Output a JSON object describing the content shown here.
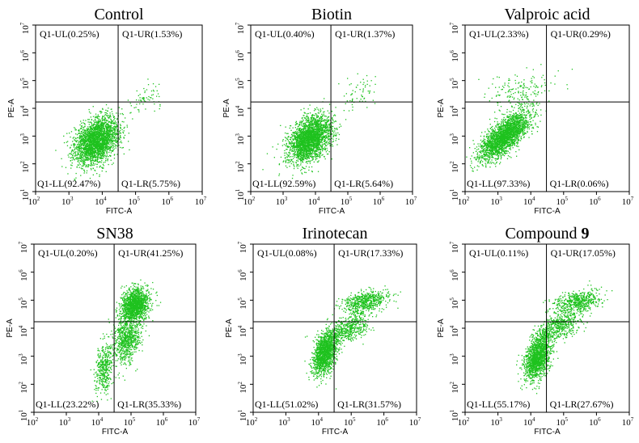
{
  "chart_data": [
    {
      "type": "scatter",
      "title": "Control",
      "xlabel": "FITC-A",
      "ylabel": "PE-A",
      "xscale": "log",
      "yscale": "log",
      "xlim": [
        100,
        10000000
      ],
      "ylim": [
        10,
        10000000
      ],
      "xticks": [
        "10",
        "10",
        "10",
        "10",
        "10",
        "10"
      ],
      "xtick_exp": [
        "2",
        "3",
        "4",
        "5",
        "6",
        "7"
      ],
      "yticks": [
        "10",
        "10",
        "10",
        "10",
        "10",
        "10",
        "10"
      ],
      "ytick_exp": [
        "1",
        "2",
        "3",
        "4",
        "5",
        "6",
        "7"
      ],
      "gates": {
        "x": 30000,
        "y": 17000
      },
      "color": "#1fc21f",
      "quadrants": {
        "UL": "Q1-UL(0.25%)",
        "UR": "Q1-UR(1.53%)",
        "LL": "Q1-LL(92.47%)",
        "LR": "Q1-LR(5.75%)"
      },
      "populations": [
        {
          "cx": 6500,
          "cy": 700,
          "sx": 0.33,
          "sy": 0.42,
          "rho": 0.35,
          "fraction": 0.975
        },
        {
          "cx": 200000,
          "cy": 30000,
          "sx": 0.28,
          "sy": 0.35,
          "rho": 0.3,
          "fraction": 0.025
        }
      ]
    },
    {
      "type": "scatter",
      "title": "Biotin",
      "xlabel": "FITC-A",
      "ylabel": "PE-A",
      "xscale": "log",
      "yscale": "log",
      "xlim": [
        100,
        10000000
      ],
      "ylim": [
        10,
        10000000
      ],
      "xticks": [
        "10",
        "10",
        "10",
        "10",
        "10",
        "10"
      ],
      "xtick_exp": [
        "2",
        "3",
        "4",
        "5",
        "6",
        "7"
      ],
      "yticks": [
        "10",
        "10",
        "10",
        "10",
        "10",
        "10",
        "10"
      ],
      "ytick_exp": [
        "1",
        "2",
        "3",
        "4",
        "5",
        "6",
        "7"
      ],
      "gates": {
        "x": 30000,
        "y": 17000
      },
      "color": "#1fc21f",
      "quadrants": {
        "UL": "Q1-UL(0.40%)",
        "UR": "Q1-UR(1.37%)",
        "LL": "Q1-LL(92.59%)",
        "LR": "Q1-LR(5.64%)"
      },
      "populations": [
        {
          "cx": 6500,
          "cy": 800,
          "sx": 0.33,
          "sy": 0.42,
          "rho": 0.4,
          "fraction": 0.975
        },
        {
          "cx": 200000,
          "cy": 30000,
          "sx": 0.3,
          "sy": 0.35,
          "rho": 0.3,
          "fraction": 0.025
        }
      ]
    },
    {
      "type": "scatter",
      "title": "Valproic acid",
      "xlabel": "FITC-A",
      "ylabel": "PE-A",
      "xscale": "log",
      "yscale": "log",
      "xlim": [
        100,
        10000000
      ],
      "ylim": [
        10,
        10000000
      ],
      "xticks": [
        "10",
        "10",
        "10",
        "10",
        "10",
        "10"
      ],
      "xtick_exp": [
        "2",
        "3",
        "4",
        "5",
        "6",
        "7"
      ],
      "yticks": [
        "10",
        "10",
        "10",
        "10",
        "10",
        "10",
        "10"
      ],
      "ytick_exp": [
        "1",
        "2",
        "3",
        "4",
        "5",
        "6",
        "7"
      ],
      "gates": {
        "x": 30000,
        "y": 17000
      },
      "color": "#1fc21f",
      "quadrants": {
        "UL": "Q1-UL(2.33%)",
        "UR": "Q1-UR(0.29%)",
        "LL": "Q1-LL(97.33%)",
        "LR": "Q1-LR(0.06%)"
      },
      "populations": [
        {
          "cx": 1500,
          "cy": 1000,
          "sx": 0.38,
          "sy": 0.42,
          "rho": 0.7,
          "fraction": 0.93
        },
        {
          "cx": 5000,
          "cy": 40000,
          "sx": 0.5,
          "sy": 0.35,
          "rho": 0.2,
          "fraction": 0.07
        }
      ]
    },
    {
      "type": "scatter",
      "title": "SN38",
      "xlabel": "FITC-A",
      "ylabel": "PE-A",
      "xscale": "log",
      "yscale": "log",
      "xlim": [
        100,
        10000000
      ],
      "ylim": [
        10,
        10000000
      ],
      "xticks": [
        "10",
        "10",
        "10",
        "10",
        "10",
        "10"
      ],
      "xtick_exp": [
        "2",
        "3",
        "4",
        "5",
        "6",
        "7"
      ],
      "yticks": [
        "10",
        "10",
        "10",
        "10",
        "10",
        "10",
        "10"
      ],
      "ytick_exp": [
        "1",
        "2",
        "3",
        "4",
        "5",
        "6",
        "7"
      ],
      "gates": {
        "x": 30000,
        "y": 17000
      },
      "color": "#1fc21f",
      "quadrants": {
        "UL": "Q1-UL(0.20%)",
        "UR": "Q1-UR(41.25%)",
        "LL": "Q1-LL(23.22%)",
        "LR": "Q1-LR(35.33%)"
      },
      "populations": [
        {
          "cx": 130000,
          "cy": 70000,
          "sx": 0.22,
          "sy": 0.3,
          "rho": 0.2,
          "fraction": 0.55
        },
        {
          "cx": 70000,
          "cy": 4000,
          "sx": 0.22,
          "sy": 0.45,
          "rho": 0.3,
          "fraction": 0.3
        },
        {
          "cx": 14000,
          "cy": 400,
          "sx": 0.14,
          "sy": 0.45,
          "rho": 0.2,
          "fraction": 0.15
        }
      ]
    },
    {
      "type": "scatter",
      "title": "Irinotecan",
      "xlabel": "FITC-A",
      "ylabel": "PE-A",
      "xscale": "log",
      "yscale": "log",
      "xlim": [
        100,
        10000000
      ],
      "ylim": [
        10,
        10000000
      ],
      "xticks": [
        "10",
        "10",
        "10",
        "10",
        "10",
        "10"
      ],
      "xtick_exp": [
        "2",
        "3",
        "4",
        "5",
        "6",
        "7"
      ],
      "yticks": [
        "10",
        "10",
        "10",
        "10",
        "10",
        "10",
        "10"
      ],
      "ytick_exp": [
        "1",
        "2",
        "3",
        "4",
        "5",
        "6",
        "7"
      ],
      "gates": {
        "x": 30000,
        "y": 17000
      },
      "color": "#1fc21f",
      "quadrants": {
        "UL": "Q1-UL(0.08%)",
        "UR": "Q1-UR(17.33%)",
        "LL": "Q1-LL(51.02%)",
        "LR": "Q1-LR(31.57%)"
      },
      "populations": [
        {
          "cx": 15000,
          "cy": 1300,
          "sx": 0.18,
          "sy": 0.38,
          "rho": 0.4,
          "fraction": 0.55
        },
        {
          "cx": 70000,
          "cy": 9000,
          "sx": 0.35,
          "sy": 0.3,
          "rho": 0.6,
          "fraction": 0.22
        },
        {
          "cx": 250000,
          "cy": 90000,
          "sx": 0.35,
          "sy": 0.2,
          "rho": 0.4,
          "fraction": 0.23
        }
      ]
    },
    {
      "type": "scatter",
      "title": "Compound ",
      "title_bold": "9",
      "xlabel": "FITC-A",
      "ylabel": "PE-A",
      "xscale": "log",
      "yscale": "log",
      "xlim": [
        100,
        10000000
      ],
      "ylim": [
        10,
        10000000
      ],
      "xticks": [
        "10",
        "10",
        "10",
        "10",
        "10",
        "10"
      ],
      "xtick_exp": [
        "2",
        "3",
        "4",
        "5",
        "6",
        "7"
      ],
      "yticks": [
        "10",
        "10",
        "10",
        "10",
        "10",
        "10",
        "10"
      ],
      "ytick_exp": [
        "1",
        "2",
        "3",
        "4",
        "5",
        "6",
        "7"
      ],
      "gates": {
        "x": 30000,
        "y": 17000
      },
      "color": "#1fc21f",
      "quadrants": {
        "UL": "Q1-UL(0.11%)",
        "UR": "Q1-UR(17.05%)",
        "LL": "Q1-LL(55.17%)",
        "LR": "Q1-LR(27.67%)"
      },
      "populations": [
        {
          "cx": 16000,
          "cy": 1000,
          "sx": 0.2,
          "sy": 0.4,
          "rho": 0.4,
          "fraction": 0.58
        },
        {
          "cx": 70000,
          "cy": 12000,
          "sx": 0.35,
          "sy": 0.3,
          "rho": 0.6,
          "fraction": 0.2
        },
        {
          "cx": 250000,
          "cy": 90000,
          "sx": 0.35,
          "sy": 0.2,
          "rho": 0.4,
          "fraction": 0.22
        }
      ]
    }
  ]
}
